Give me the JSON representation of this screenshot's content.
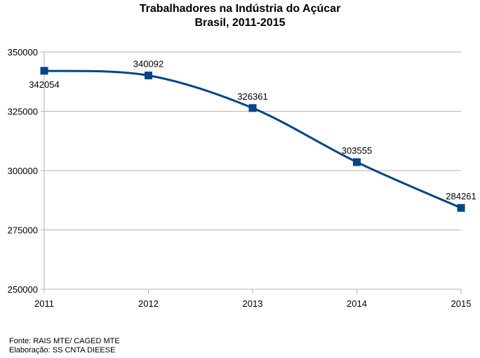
{
  "chart_data": {
    "type": "line",
    "title": "Trabalhadores na Indústria do Açúcar",
    "subtitle": "Brasil, 2011-2015",
    "x": [
      "2011",
      "2012",
      "2013",
      "2014",
      "2015"
    ],
    "series": [
      {
        "values": [
          342054,
          340092,
          326361,
          303555,
          284261
        ],
        "data_labels": [
          "342054",
          "340092",
          "326361",
          "303555",
          "284261"
        ]
      }
    ],
    "ylim": [
      250000,
      350000
    ],
    "yticks": [
      "350000",
      "325000",
      "300000",
      "275000",
      "250000"
    ],
    "ytick_values": [
      350000,
      325000,
      300000,
      275000,
      250000
    ],
    "grid": "horizontal",
    "smooth": true,
    "marker": "square",
    "xlabel": "",
    "ylabel": ""
  },
  "colors": {
    "series": "#004586",
    "grid": "#b3b3b3",
    "axis": "#b3b3b3"
  },
  "footer": {
    "source": "Fonte: RAIS MTE/ CAGED MTE",
    "credit": "Elaboração: SS CNTA DIEESE"
  }
}
